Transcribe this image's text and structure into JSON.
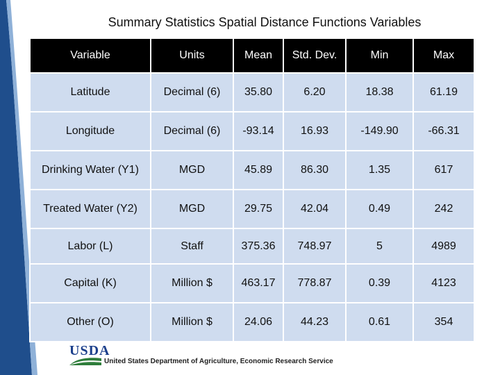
{
  "title": "Summary Statistics Spatial Distance Functions Variables",
  "table": {
    "headers": [
      "Variable",
      "Units",
      "Mean",
      "Std. Dev.",
      "Min",
      "Max"
    ],
    "rows": [
      [
        "Latitude",
        "Decimal (6)",
        "35.80",
        "6.20",
        "18.38",
        "61.19"
      ],
      [
        "Longitude",
        "Decimal (6)",
        "-93.14",
        "16.93",
        "-149.90",
        "-66.31"
      ],
      [
        "Drinking Water (Y1)",
        "MGD",
        "45.89",
        "86.30",
        "1.35",
        "617"
      ],
      [
        "Treated Water (Y2)",
        "MGD",
        "29.75",
        "42.04",
        "0.49",
        "242"
      ],
      [
        "Labor (L)",
        "Staff",
        "375.36",
        "748.97",
        "5",
        "4989"
      ],
      [
        "Capital (K)",
        "Million $",
        "463.17",
        "778.87",
        "0.39",
        "4123"
      ],
      [
        "Other (O)",
        "Million $",
        "24.06",
        "44.23",
        "0.61",
        "354"
      ]
    ]
  },
  "footer": {
    "logo_text": "USDA",
    "department": "United States Department of Agriculture, Economic Research Service"
  },
  "colors": {
    "header_bg": "#000000",
    "cell_bg": "#cfdcef",
    "brand_blue": "#1b3f8b",
    "swoosh_blue": "#1f4e8c"
  }
}
